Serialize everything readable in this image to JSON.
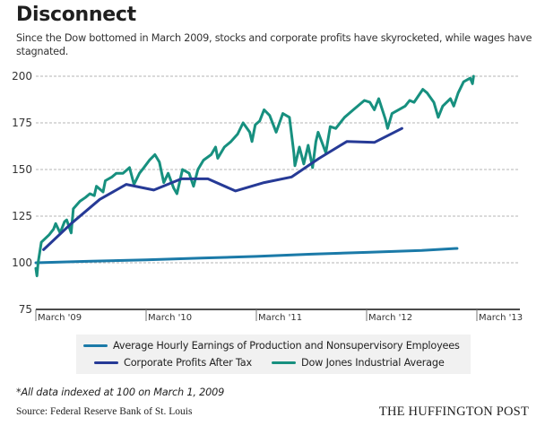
{
  "header": {
    "title": "Disconnect",
    "subtitle": "Since the Dow bottomed in March 2009, stocks and corporate profits have skyrocketed, while wages have stagnated."
  },
  "footer": {
    "note": "*All data indexed at 100 on March 1, 2009",
    "source": "Source: Federal Reserve Bank of St. Louis",
    "brand": "THE HUFFINGTON POST"
  },
  "chart_data": {
    "type": "line",
    "title": "Disconnect",
    "subtitle": "Since the Dow bottomed in March 2009, stocks and corporate profits have skyrocketed, while wages have stagnated.",
    "xlabel": "",
    "ylabel": "",
    "x_unit": "year (decimal)",
    "xlim": [
      2009.17,
      2013.17
    ],
    "ylim": [
      75,
      200
    ],
    "yticks": [
      75,
      100,
      125,
      150,
      175,
      200
    ],
    "ytick_labels": [
      "75",
      "100",
      "125",
      "150",
      "175",
      "200"
    ],
    "xticks": [
      2009.17,
      2010.17,
      2011.17,
      2012.17,
      2013.17
    ],
    "xtick_labels": [
      "March '09",
      "March '10",
      "March '11",
      "March '12",
      "March '13"
    ],
    "grid": "horizontal dashed",
    "legend_position": "bottom",
    "note": "*All data indexed at 100 on March 1, 2009",
    "source": "Source: Federal Reserve Bank of St. Louis",
    "series": [
      {
        "name": "Average Hourly Earnings of Production and Nonsupervisory Employees",
        "color": "#1b7aa8",
        "points": [
          [
            2009.17,
            100
          ],
          [
            2009.67,
            100.8
          ],
          [
            2010.17,
            101.6
          ],
          [
            2010.67,
            102.5
          ],
          [
            2011.17,
            103.4
          ],
          [
            2011.67,
            104.6
          ],
          [
            2012.17,
            105.6
          ],
          [
            2012.67,
            106.6
          ],
          [
            2012.99,
            107.7
          ]
        ]
      },
      {
        "name": "Corporate Profits After Tax",
        "color": "#263a96",
        "points": [
          [
            2009.24,
            107
          ],
          [
            2009.49,
            121
          ],
          [
            2009.75,
            134
          ],
          [
            2009.99,
            142
          ],
          [
            2010.24,
            139
          ],
          [
            2010.49,
            145
          ],
          [
            2010.73,
            145
          ],
          [
            2010.98,
            138.5
          ],
          [
            2011.24,
            143
          ],
          [
            2011.49,
            146
          ],
          [
            2011.74,
            156
          ],
          [
            2011.99,
            165
          ],
          [
            2012.24,
            164.5
          ],
          [
            2012.49,
            172
          ]
        ]
      },
      {
        "name": "Dow Jones Industrial Average",
        "color": "#17907f",
        "points": [
          [
            2009.17,
            97
          ],
          [
            2009.18,
            93
          ],
          [
            2009.19,
            100
          ],
          [
            2009.22,
            111
          ],
          [
            2009.29,
            115
          ],
          [
            2009.33,
            118
          ],
          [
            2009.35,
            121
          ],
          [
            2009.39,
            116
          ],
          [
            2009.43,
            122
          ],
          [
            2009.45,
            123
          ],
          [
            2009.49,
            116
          ],
          [
            2009.51,
            129
          ],
          [
            2009.57,
            133
          ],
          [
            2009.62,
            135
          ],
          [
            2009.66,
            137
          ],
          [
            2009.7,
            136
          ],
          [
            2009.72,
            141
          ],
          [
            2009.78,
            138
          ],
          [
            2009.8,
            144
          ],
          [
            2009.86,
            146
          ],
          [
            2009.9,
            148
          ],
          [
            2009.96,
            148
          ],
          [
            2010.02,
            151
          ],
          [
            2010.06,
            142
          ],
          [
            2010.11,
            148
          ],
          [
            2010.15,
            151
          ],
          [
            2010.2,
            155
          ],
          [
            2010.25,
            158
          ],
          [
            2010.29,
            154
          ],
          [
            2010.33,
            143
          ],
          [
            2010.37,
            148
          ],
          [
            2010.42,
            140
          ],
          [
            2010.45,
            137
          ],
          [
            2010.5,
            150
          ],
          [
            2010.56,
            148
          ],
          [
            2010.6,
            141
          ],
          [
            2010.64,
            150
          ],
          [
            2010.69,
            155
          ],
          [
            2010.76,
            158
          ],
          [
            2010.8,
            162
          ],
          [
            2010.82,
            156
          ],
          [
            2010.88,
            162
          ],
          [
            2010.94,
            165
          ],
          [
            2011.0,
            169
          ],
          [
            2011.05,
            175
          ],
          [
            2011.11,
            170
          ],
          [
            2011.13,
            165
          ],
          [
            2011.16,
            174
          ],
          [
            2011.2,
            176
          ],
          [
            2011.24,
            182
          ],
          [
            2011.29,
            179
          ],
          [
            2011.35,
            170
          ],
          [
            2011.41,
            180
          ],
          [
            2011.47,
            178
          ],
          [
            2011.51,
            159
          ],
          [
            2011.52,
            152
          ],
          [
            2011.56,
            162
          ],
          [
            2011.6,
            153
          ],
          [
            2011.64,
            163
          ],
          [
            2011.68,
            151
          ],
          [
            2011.71,
            165
          ],
          [
            2011.73,
            170
          ],
          [
            2011.8,
            159
          ],
          [
            2011.84,
            173
          ],
          [
            2011.89,
            172
          ],
          [
            2011.97,
            178
          ],
          [
            2012.05,
            182
          ],
          [
            2012.15,
            187
          ],
          [
            2012.2,
            186
          ],
          [
            2012.24,
            182
          ],
          [
            2012.28,
            188
          ],
          [
            2012.34,
            177
          ],
          [
            2012.36,
            172
          ],
          [
            2012.4,
            180
          ],
          [
            2012.46,
            182
          ],
          [
            2012.52,
            184
          ],
          [
            2012.56,
            187
          ],
          [
            2012.6,
            186
          ],
          [
            2012.68,
            193
          ],
          [
            2012.72,
            191
          ],
          [
            2012.78,
            186
          ],
          [
            2012.82,
            178
          ],
          [
            2012.86,
            184
          ],
          [
            2012.93,
            188
          ],
          [
            2012.96,
            184
          ],
          [
            2013.0,
            191
          ],
          [
            2013.05,
            197
          ],
          [
            2013.11,
            199
          ],
          [
            2013.13,
            196
          ],
          [
            2013.14,
            200
          ]
        ]
      }
    ]
  },
  "legend": {
    "items": [
      {
        "label": "Average Hourly Earnings of Production and Nonsupervisory Employees",
        "color": "#1b7aa8"
      },
      {
        "label": "Corporate Profits After Tax",
        "color": "#263a96"
      },
      {
        "label": "Dow Jones Industrial Average",
        "color": "#17907f"
      }
    ]
  }
}
